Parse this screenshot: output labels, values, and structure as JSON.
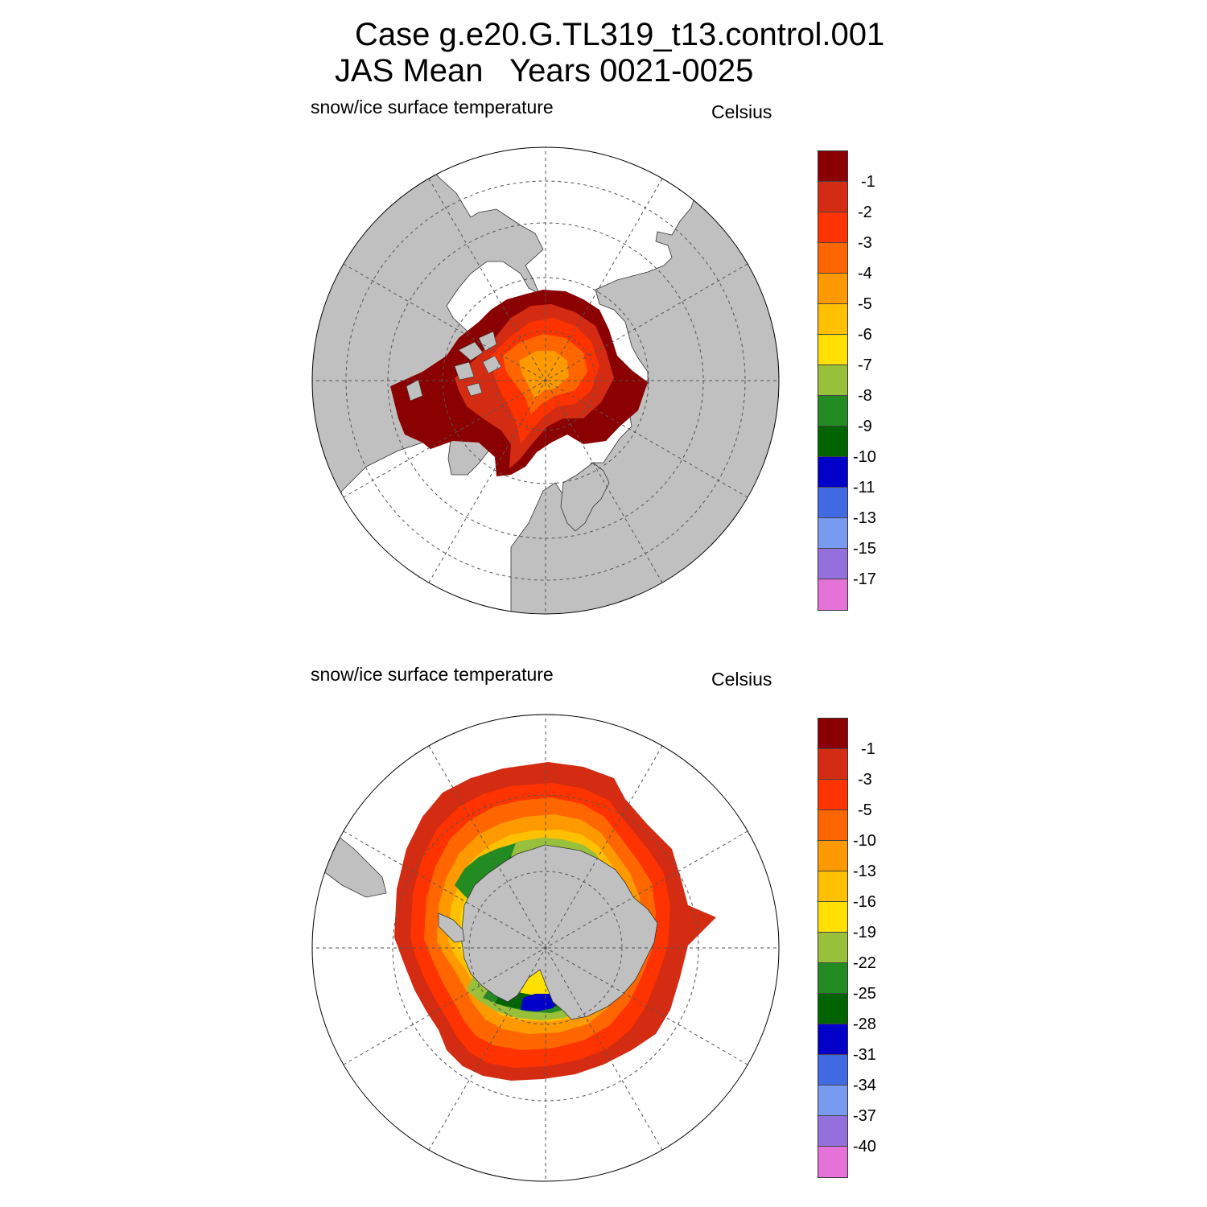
{
  "figure": {
    "title_line1": "Case g.e20.G.TL319_t13.control.001",
    "title_line2": "JAS Mean   Years 0021-0025"
  },
  "panels": [
    {
      "hemisphere": "north",
      "variable_label": "snow/ice surface temperature",
      "units_label": "Celsius",
      "colorbar": {
        "labels": [
          "-1",
          "-2",
          "-3",
          "-4",
          "-5",
          "-6",
          "-7",
          "-8",
          "-9",
          "-10",
          "-11",
          "-13",
          "-15",
          "-17"
        ],
        "colors": [
          "#8b0000",
          "#d42c12",
          "#ff3300",
          "#ff6600",
          "#ff9900",
          "#ffc000",
          "#ffe000",
          "#99c03a",
          "#228b22",
          "#006400",
          "#0000c8",
          "#4169e1",
          "#789bf0",
          "#9370db",
          "#e472d8"
        ]
      }
    },
    {
      "hemisphere": "south",
      "variable_label": "snow/ice surface temperature",
      "units_label": "Celsius",
      "colorbar": {
        "labels": [
          "-1",
          "-3",
          "-5",
          "-10",
          "-13",
          "-16",
          "-19",
          "-22",
          "-25",
          "-28",
          "-31",
          "-34",
          "-37",
          "-40"
        ],
        "colors": [
          "#8b0000",
          "#d42c12",
          "#ff3300",
          "#ff6600",
          "#ff9900",
          "#ffc000",
          "#ffe000",
          "#99c03a",
          "#228b22",
          "#006400",
          "#0000c8",
          "#4169e1",
          "#789bf0",
          "#9370db",
          "#e472d8"
        ]
      }
    }
  ],
  "colors": {
    "land": "#c0c0c0",
    "ocean": "#ffffff",
    "graticule": "#555555"
  }
}
